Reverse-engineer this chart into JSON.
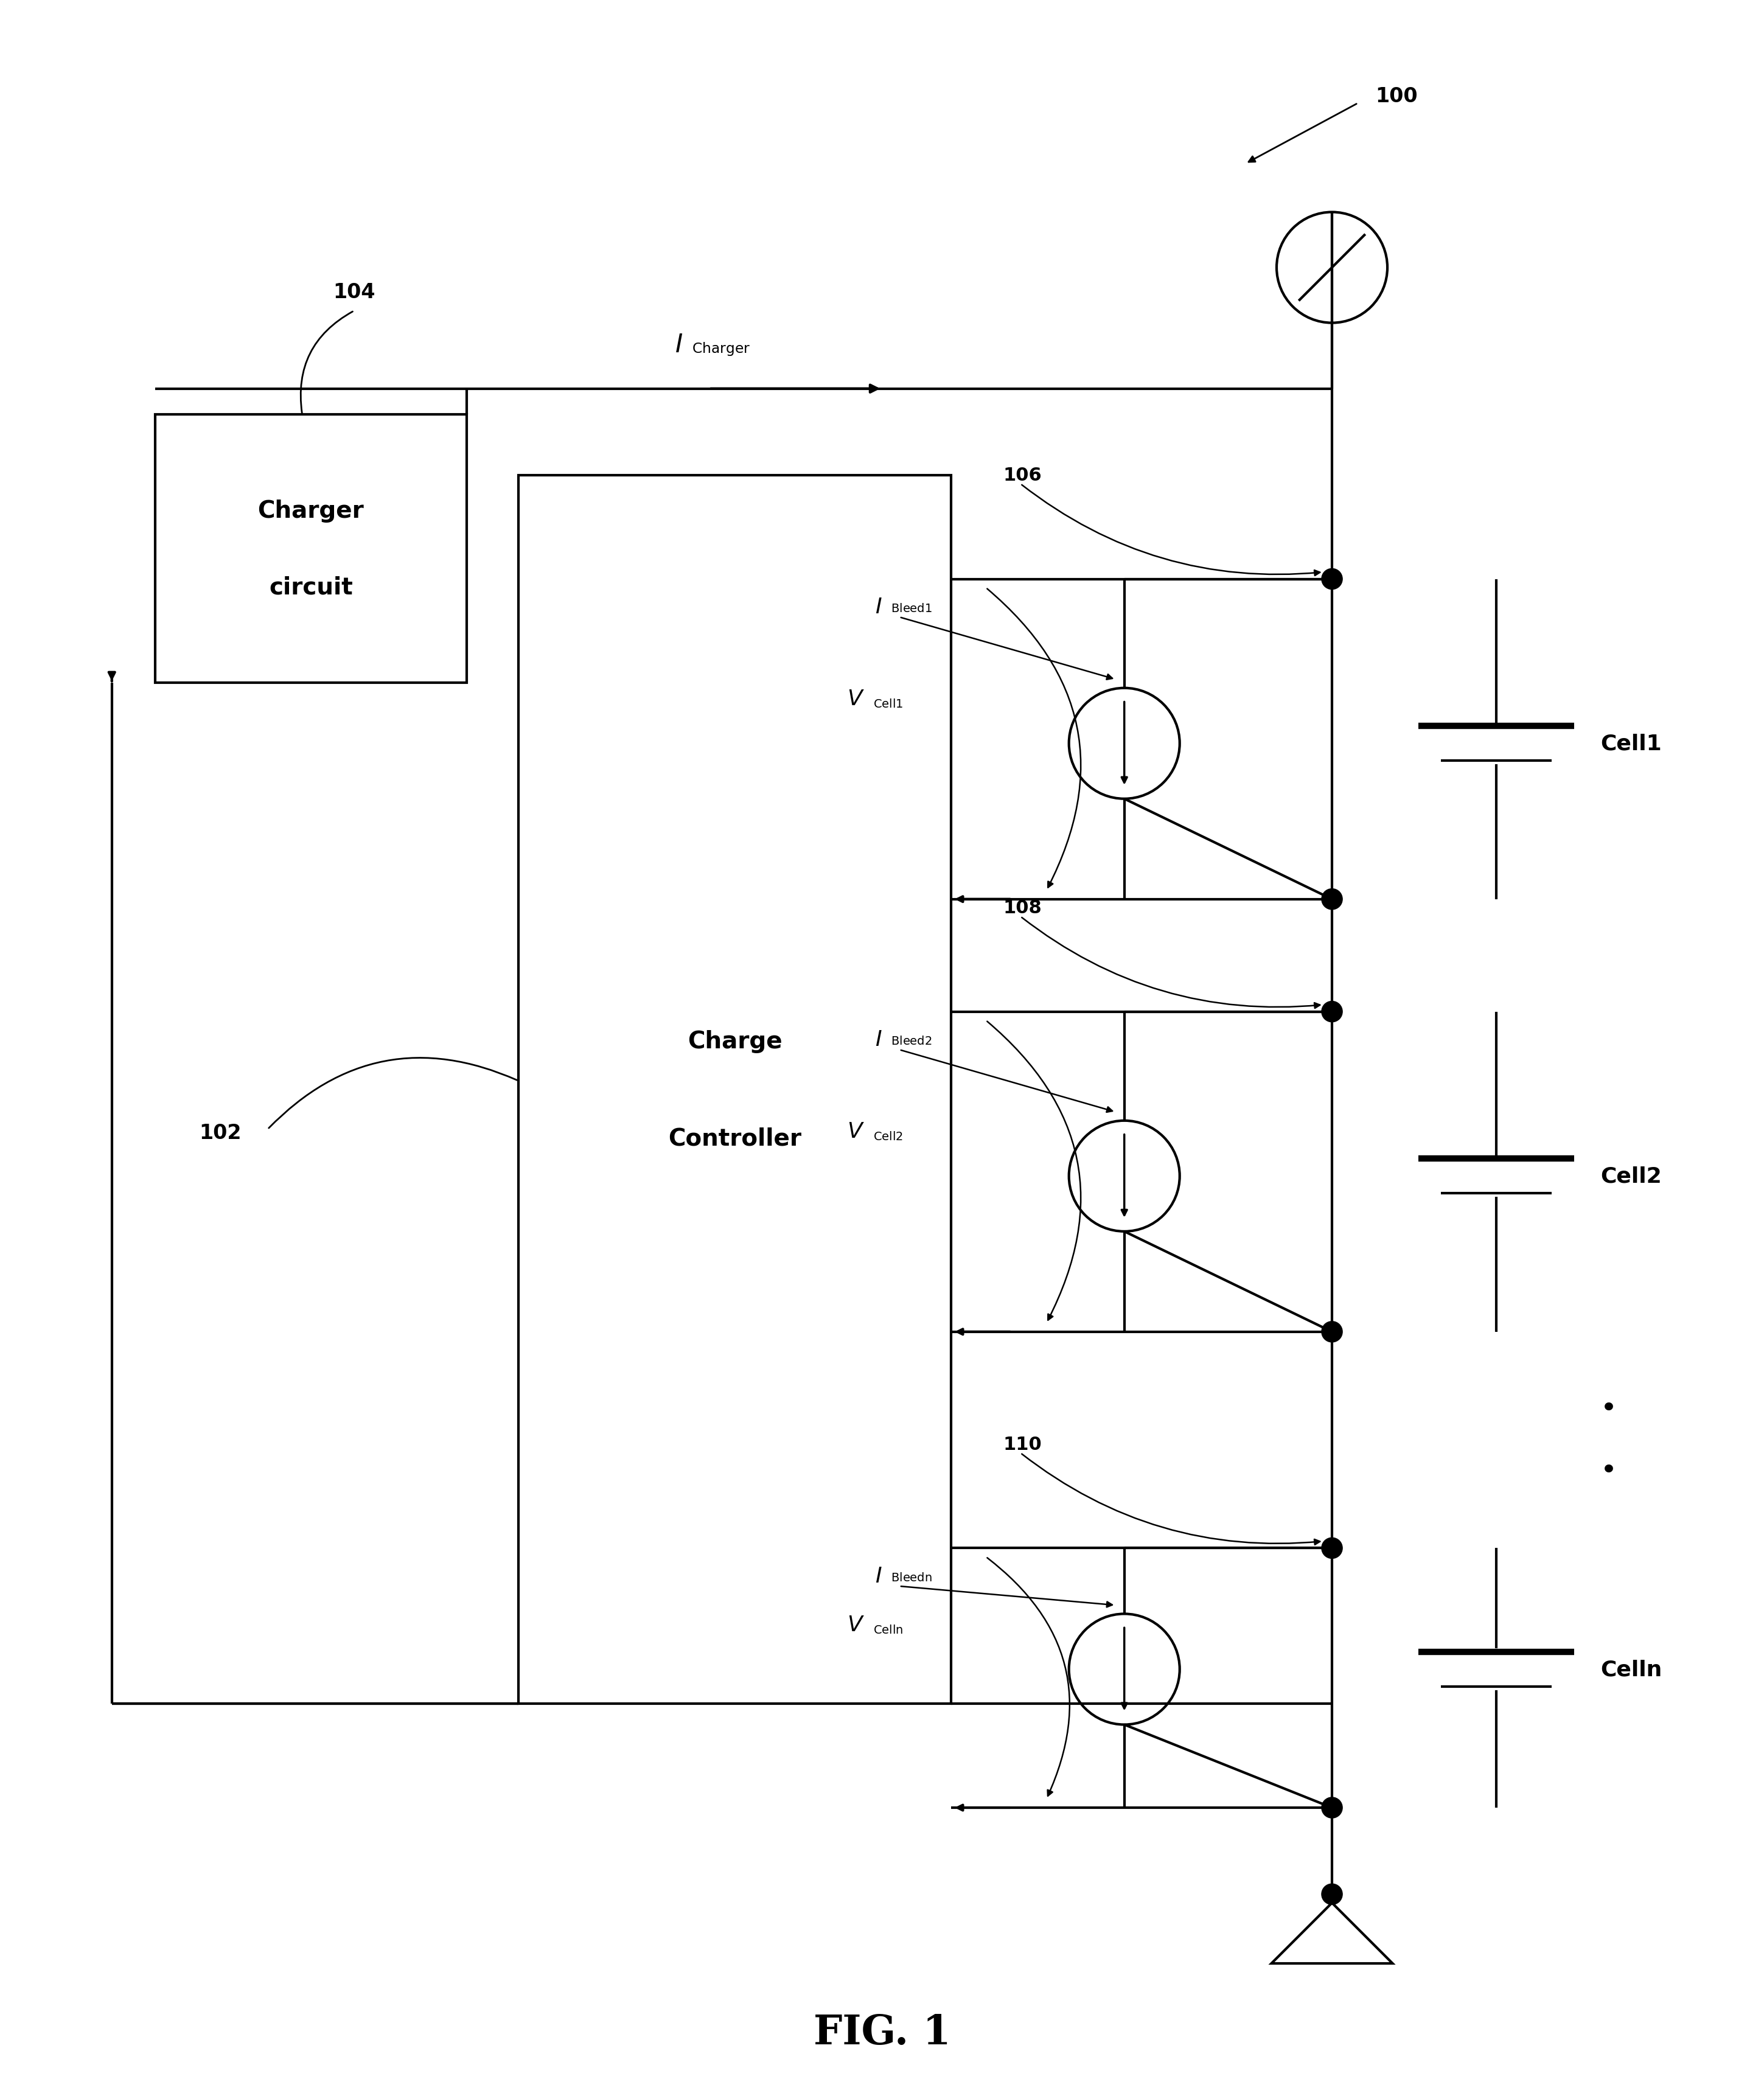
{
  "bg_color": "#ffffff",
  "line_color": "#000000",
  "lw": 3.0,
  "fig_width": 28.99,
  "fig_height": 34.41,
  "title": "FIG. 1",
  "label_100": "100",
  "label_102": "102",
  "label_104": "104",
  "label_106": "106",
  "label_108": "108",
  "label_110": "110",
  "charger_text1": "Charger",
  "charger_text2": "circuit",
  "ctrl_text1": "Charge",
  "ctrl_text2": "Controller",
  "cell1_label": "Cell1",
  "cell2_label": "Cell2",
  "celln_label": "Celln",
  "fig1_label": "FIG. 1",
  "xlim": [
    0,
    10
  ],
  "ylim": [
    0,
    12
  ]
}
